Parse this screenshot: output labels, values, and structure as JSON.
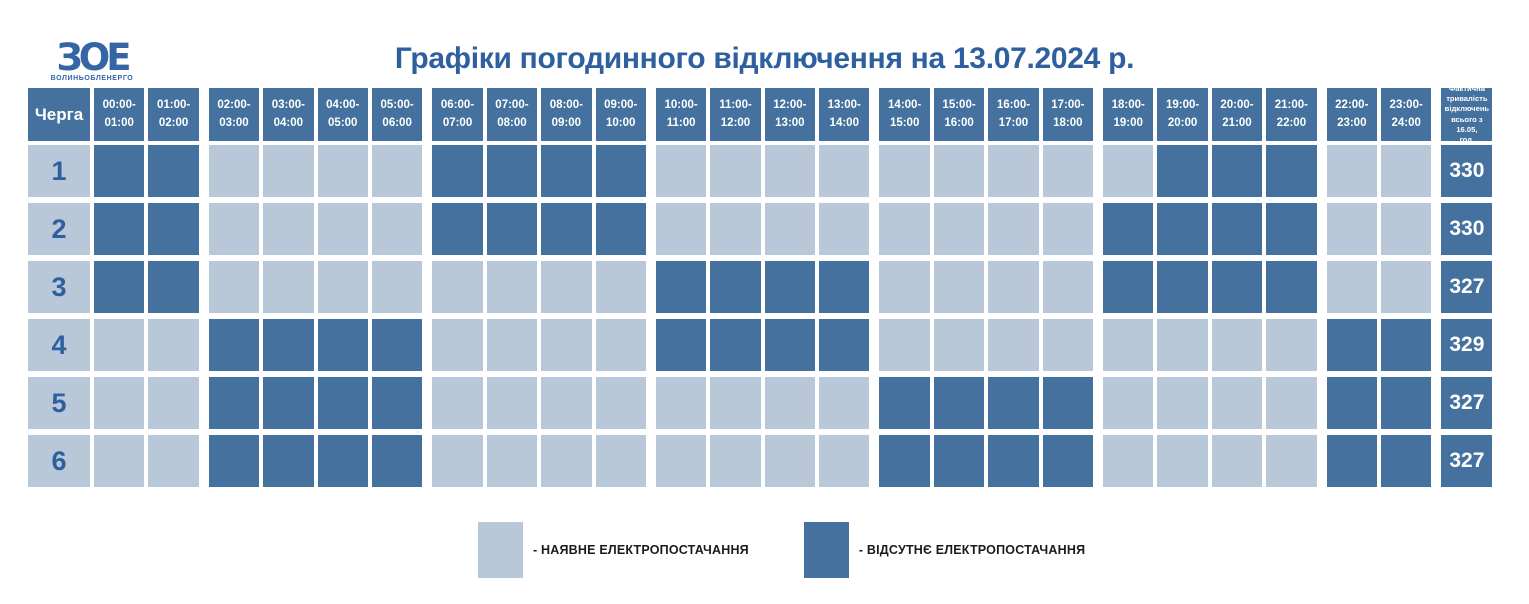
{
  "logo": {
    "text": "ЗОЕ",
    "subtext": "ВОЛИНЬОБЛЕНЕРГО"
  },
  "title": "Графіки погодинного відключення на 13.07.2024 р.",
  "chart_data": {
    "type": "heatmap",
    "title": "Графіки погодинного відключення на 13.07.2024 р.",
    "x_labels": [
      "00:00-01:00",
      "01:00-02:00",
      "02:00-03:00",
      "03:00-04:00",
      "04:00-05:00",
      "05:00-06:00",
      "06:00-07:00",
      "07:00-08:00",
      "08:00-09:00",
      "09:00-10:00",
      "10:00-11:00",
      "11:00-12:00",
      "12:00-13:00",
      "13:00-14:00",
      "14:00-15:00",
      "15:00-16:00",
      "16:00-17:00",
      "17:00-18:00",
      "18:00-19:00",
      "19:00-20:00",
      "20:00-21:00",
      "21:00-22:00",
      "22:00-23:00",
      "23:00-24:00"
    ],
    "y_labels": [
      "1",
      "2",
      "3",
      "4",
      "5",
      "6"
    ],
    "legend": [
      "0 = наявне електропостачання",
      "1 = відсутнє електропостачання"
    ],
    "values": [
      [
        1,
        1,
        0,
        0,
        0,
        0,
        1,
        1,
        1,
        1,
        0,
        0,
        0,
        0,
        0,
        0,
        0,
        0,
        0,
        1,
        1,
        1,
        0,
        0
      ],
      [
        1,
        1,
        0,
        0,
        0,
        0,
        1,
        1,
        1,
        1,
        0,
        0,
        0,
        0,
        0,
        0,
        0,
        0,
        1,
        1,
        1,
        1,
        0,
        0
      ],
      [
        1,
        1,
        0,
        0,
        0,
        0,
        0,
        0,
        0,
        0,
        1,
        1,
        1,
        1,
        0,
        0,
        0,
        0,
        1,
        1,
        1,
        1,
        0,
        0
      ],
      [
        0,
        0,
        1,
        1,
        1,
        1,
        0,
        0,
        0,
        0,
        1,
        1,
        1,
        1,
        0,
        0,
        0,
        0,
        0,
        0,
        0,
        0,
        1,
        1
      ],
      [
        0,
        0,
        1,
        1,
        1,
        1,
        0,
        0,
        0,
        0,
        0,
        0,
        0,
        0,
        1,
        1,
        1,
        1,
        0,
        0,
        0,
        0,
        1,
        1
      ],
      [
        0,
        0,
        1,
        1,
        1,
        1,
        0,
        0,
        0,
        0,
        0,
        0,
        0,
        0,
        1,
        1,
        1,
        1,
        0,
        0,
        0,
        0,
        1,
        1
      ]
    ],
    "totals": [
      "330",
      "330",
      "327",
      "329",
      "327",
      "327"
    ]
  },
  "table": {
    "queue_header": "Черга",
    "hours": [
      "00:00-\n01:00",
      "01:00-\n02:00",
      "02:00-\n03:00",
      "03:00-\n04:00",
      "04:00-\n05:00",
      "05:00-\n06:00",
      "06:00-\n07:00",
      "07:00-\n08:00",
      "08:00-\n09:00",
      "09:00-\n10:00",
      "10:00-\n11:00",
      "11:00-\n12:00",
      "12:00-\n13:00",
      "13:00-\n14:00",
      "14:00-\n15:00",
      "15:00-\n16:00",
      "16:00-\n17:00",
      "17:00-\n18:00",
      "18:00-\n19:00",
      "19:00-\n20:00",
      "20:00-\n21:00",
      "21:00-\n22:00",
      "22:00-\n23:00",
      "23:00-\n24:00"
    ],
    "total_header": "Фактична\nтривалість\nвідключень\nвсього з 16.05,\nгод.",
    "rows": [
      {
        "queue": "1",
        "cells": [
          1,
          1,
          0,
          0,
          0,
          0,
          1,
          1,
          1,
          1,
          0,
          0,
          0,
          0,
          0,
          0,
          0,
          0,
          0,
          1,
          1,
          1,
          0,
          0
        ],
        "total": "330"
      },
      {
        "queue": "2",
        "cells": [
          1,
          1,
          0,
          0,
          0,
          0,
          1,
          1,
          1,
          1,
          0,
          0,
          0,
          0,
          0,
          0,
          0,
          0,
          1,
          1,
          1,
          1,
          0,
          0
        ],
        "total": "330"
      },
      {
        "queue": "3",
        "cells": [
          1,
          1,
          0,
          0,
          0,
          0,
          0,
          0,
          0,
          0,
          1,
          1,
          1,
          1,
          0,
          0,
          0,
          0,
          1,
          1,
          1,
          1,
          0,
          0
        ],
        "total": "327"
      },
      {
        "queue": "4",
        "cells": [
          0,
          0,
          1,
          1,
          1,
          1,
          0,
          0,
          0,
          0,
          1,
          1,
          1,
          1,
          0,
          0,
          0,
          0,
          0,
          0,
          0,
          0,
          1,
          1
        ],
        "total": "329"
      },
      {
        "queue": "5",
        "cells": [
          0,
          0,
          1,
          1,
          1,
          1,
          0,
          0,
          0,
          0,
          0,
          0,
          0,
          0,
          1,
          1,
          1,
          1,
          0,
          0,
          0,
          0,
          1,
          1
        ],
        "total": "327"
      },
      {
        "queue": "6",
        "cells": [
          0,
          0,
          1,
          1,
          1,
          1,
          0,
          0,
          0,
          0,
          0,
          0,
          0,
          0,
          1,
          1,
          1,
          1,
          0,
          0,
          0,
          0,
          1,
          1
        ],
        "total": "327"
      }
    ]
  },
  "legend": {
    "available_label": "- НАЯВНЕ ЕЛЕКТРОПОСТАЧАННЯ",
    "absent_label": "- ВІДСУТНЄ ЕЛЕКТРОПОСТАЧАННЯ"
  },
  "colors": {
    "available": "#b9c8d8",
    "absent": "#44719e",
    "header": "#44719e",
    "title": "#2e5f9e",
    "logo": "#3465a4"
  }
}
